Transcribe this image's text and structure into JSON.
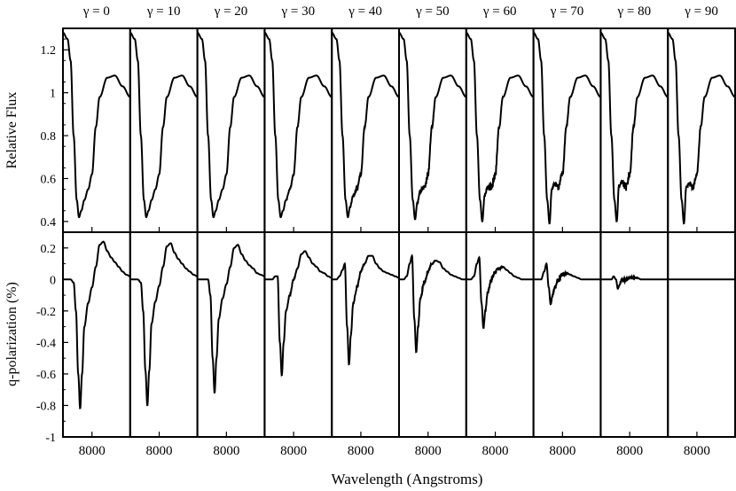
{
  "chart_data": {
    "type": "line",
    "columns": [
      "γ = 0",
      "γ = 10",
      "γ = 20",
      "γ = 30",
      "γ = 40",
      "γ = 50",
      "γ = 60",
      "γ = 70",
      "γ = 80",
      "γ = 90"
    ],
    "gammas": [
      0,
      10,
      20,
      30,
      40,
      50,
      60,
      70,
      80,
      90
    ],
    "xlabel": "Wavelength (Angstroms)",
    "xtick_value": 8000,
    "xtick_label": "8000",
    "xlim": [
      7620,
      8500
    ],
    "top_panel": {
      "ylabel": "Relative Flux",
      "ylim": [
        0.35,
        1.3
      ],
      "yticks": [
        0.4,
        0.6,
        0.8,
        1.0,
        1.2
      ],
      "ytick_labels": [
        "0.4",
        "0.6",
        "0.8",
        "1",
        "1.2"
      ],
      "x": [
        7620,
        7680,
        7720,
        7760,
        7800,
        7830,
        7860,
        7900,
        7950,
        8000,
        8050,
        8100,
        8200,
        8300,
        8400,
        8500
      ],
      "series": [
        {
          "values": [
            1.28,
            1.25,
            1.15,
            0.8,
            0.5,
            0.42,
            0.45,
            0.5,
            0.55,
            0.62,
            0.84,
            0.98,
            1.07,
            1.08,
            1.03,
            0.98
          ],
          "amp": 0.0
        },
        {
          "values": [
            1.28,
            1.25,
            1.15,
            0.8,
            0.5,
            0.42,
            0.45,
            0.5,
            0.55,
            0.62,
            0.84,
            0.98,
            1.07,
            1.08,
            1.03,
            0.98
          ],
          "amp": 0.0
        },
        {
          "values": [
            1.28,
            1.25,
            1.15,
            0.8,
            0.5,
            0.42,
            0.45,
            0.5,
            0.55,
            0.62,
            0.84,
            0.98,
            1.07,
            1.08,
            1.03,
            0.98
          ],
          "amp": 0.0
        },
        {
          "values": [
            1.28,
            1.25,
            1.15,
            0.8,
            0.5,
            0.42,
            0.45,
            0.5,
            0.55,
            0.62,
            0.84,
            0.98,
            1.07,
            1.08,
            1.03,
            0.98
          ],
          "amp": 0.005
        },
        {
          "values": [
            1.28,
            1.25,
            1.15,
            0.8,
            0.5,
            0.42,
            0.47,
            0.52,
            0.55,
            0.62,
            0.84,
            0.98,
            1.07,
            1.08,
            1.03,
            0.98
          ],
          "amp": 0.01
        },
        {
          "values": [
            1.28,
            1.25,
            1.15,
            0.8,
            0.5,
            0.41,
            0.49,
            0.54,
            0.56,
            0.62,
            0.84,
            0.98,
            1.07,
            1.08,
            1.03,
            0.98
          ],
          "amp": 0.015
        },
        {
          "values": [
            1.28,
            1.25,
            1.15,
            0.8,
            0.5,
            0.4,
            0.52,
            0.56,
            0.56,
            0.62,
            0.84,
            0.98,
            1.07,
            1.08,
            1.03,
            0.98
          ],
          "amp": 0.02
        },
        {
          "values": [
            1.28,
            1.25,
            1.15,
            0.8,
            0.5,
            0.39,
            0.55,
            0.58,
            0.56,
            0.62,
            0.84,
            0.98,
            1.07,
            1.08,
            1.03,
            0.98
          ],
          "amp": 0.02
        },
        {
          "values": [
            1.28,
            1.25,
            1.15,
            0.8,
            0.5,
            0.4,
            0.57,
            0.58,
            0.56,
            0.62,
            0.84,
            0.98,
            1.07,
            1.08,
            1.03,
            0.98
          ],
          "amp": 0.02
        },
        {
          "values": [
            1.28,
            1.25,
            1.15,
            0.8,
            0.5,
            0.39,
            0.56,
            0.58,
            0.56,
            0.62,
            0.84,
            0.98,
            1.07,
            1.08,
            1.03,
            0.98
          ],
          "amp": 0.015
        }
      ]
    },
    "bottom_panel": {
      "ylabel": "q-polarization (%)",
      "ylim": [
        -1.0,
        0.3
      ],
      "yticks": [
        -1.0,
        -0.8,
        -0.6,
        -0.4,
        -0.2,
        0.0,
        0.2
      ],
      "ytick_labels": [
        "-1",
        "-0.8",
        "-0.6",
        "-0.4",
        "-0.2",
        "0",
        "0.2"
      ],
      "x": [
        7620,
        7680,
        7720,
        7760,
        7790,
        7820,
        7845,
        7870,
        7900,
        7950,
        8000,
        8050,
        8100,
        8150,
        8200,
        8250,
        8300,
        8350,
        8400,
        8450,
        8500
      ],
      "series": [
        {
          "values": [
            0.0,
            0.0,
            0.0,
            -0.02,
            -0.2,
            -0.6,
            -0.82,
            -0.6,
            -0.3,
            -0.15,
            -0.05,
            0.08,
            0.22,
            0.24,
            0.18,
            0.14,
            0.11,
            0.08,
            0.05,
            0.03,
            0.02
          ],
          "amp": 0.0
        },
        {
          "values": [
            0.0,
            0.0,
            0.0,
            -0.02,
            -0.2,
            -0.58,
            -0.8,
            -0.58,
            -0.28,
            -0.14,
            -0.04,
            0.08,
            0.21,
            0.23,
            0.17,
            0.13,
            0.1,
            0.07,
            0.05,
            0.03,
            0.02
          ],
          "amp": 0.0
        },
        {
          "values": [
            0.0,
            0.0,
            0.0,
            0.0,
            -0.1,
            -0.5,
            -0.72,
            -0.5,
            -0.25,
            -0.12,
            -0.03,
            0.08,
            0.2,
            0.22,
            0.16,
            0.12,
            0.09,
            0.07,
            0.04,
            0.03,
            0.02
          ],
          "amp": 0.0
        },
        {
          "values": [
            0.0,
            0.0,
            0.0,
            0.02,
            0.02,
            -0.4,
            -0.61,
            -0.4,
            -0.2,
            -0.1,
            0.0,
            0.07,
            0.16,
            0.18,
            0.14,
            0.1,
            0.08,
            0.05,
            0.04,
            0.02,
            0.01
          ],
          "amp": 0.005
        },
        {
          "values": [
            0.0,
            0.0,
            0.02,
            0.06,
            0.1,
            -0.3,
            -0.54,
            -0.35,
            -0.15,
            -0.05,
            0.05,
            0.1,
            0.15,
            0.15,
            0.1,
            0.07,
            0.05,
            0.04,
            0.03,
            0.02,
            0.01
          ],
          "amp": 0.01
        },
        {
          "values": [
            0.0,
            0.0,
            0.02,
            0.1,
            0.15,
            -0.25,
            -0.46,
            -0.3,
            -0.12,
            -0.02,
            0.05,
            0.1,
            0.12,
            0.11,
            0.07,
            0.05,
            0.03,
            0.02,
            0.01,
            0.0,
            0.0
          ],
          "amp": 0.015
        },
        {
          "values": [
            0.0,
            0.0,
            0.02,
            0.1,
            0.14,
            -0.15,
            -0.31,
            -0.2,
            -0.08,
            0.0,
            0.05,
            0.07,
            0.08,
            0.06,
            0.04,
            0.02,
            0.01,
            0.0,
            0.0,
            0.0,
            0.0
          ],
          "amp": 0.02
        },
        {
          "values": [
            0.0,
            0.0,
            0.0,
            0.05,
            0.1,
            -0.05,
            -0.16,
            -0.1,
            -0.05,
            0.0,
            0.03,
            0.04,
            0.03,
            0.02,
            0.01,
            0.0,
            0.0,
            0.0,
            0.0,
            0.0,
            0.0
          ],
          "amp": 0.02
        },
        {
          "values": [
            0.0,
            0.0,
            0.0,
            0.0,
            0.02,
            0.0,
            -0.06,
            -0.03,
            0.0,
            0.0,
            0.01,
            0.01,
            0.01,
            0.0,
            0.0,
            0.0,
            0.0,
            0.0,
            0.0,
            0.0,
            0.0
          ],
          "amp": 0.015
        },
        {
          "values": [
            0.0,
            0.0,
            0.0,
            0.0,
            0.0,
            0.0,
            0.0,
            0.0,
            0.0,
            0.0,
            0.0,
            0.0,
            0.0,
            0.0,
            0.0,
            0.0,
            0.0,
            0.0,
            0.0,
            0.0,
            0.0
          ],
          "amp": 0.0
        }
      ]
    }
  }
}
